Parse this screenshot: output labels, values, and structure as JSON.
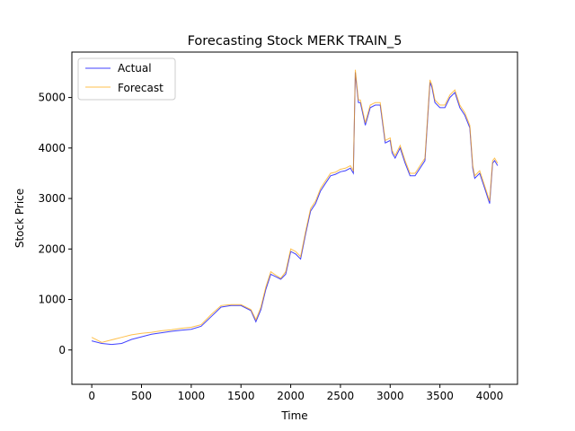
{
  "chart_data": {
    "type": "line",
    "title": "Forecasting Stock MERK TRAIN_5",
    "xlabel": "Time",
    "ylabel": "Stock Price",
    "xlim": [
      -200,
      4280
    ],
    "ylim": [
      -680,
      5900
    ],
    "xticks": [
      0,
      500,
      1000,
      1500,
      2000,
      2500,
      3000,
      3500,
      4000
    ],
    "yticks": [
      0,
      1000,
      2000,
      3000,
      4000,
      5000
    ],
    "grid": false,
    "legend_position": "top-left",
    "series": [
      {
        "name": "Actual",
        "color": "#0000ff",
        "x": [
          0,
          100,
          200,
          300,
          400,
          500,
          600,
          700,
          800,
          900,
          1000,
          1100,
          1200,
          1300,
          1400,
          1500,
          1600,
          1650,
          1700,
          1750,
          1800,
          1850,
          1900,
          1950,
          2000,
          2050,
          2100,
          2150,
          2200,
          2250,
          2300,
          2350,
          2400,
          2450,
          2500,
          2550,
          2600,
          2630,
          2650,
          2660,
          2680,
          2700,
          2750,
          2800,
          2850,
          2900,
          2950,
          3000,
          3020,
          3050,
          3100,
          3150,
          3200,
          3250,
          3300,
          3350,
          3400,
          3420,
          3450,
          3500,
          3550,
          3600,
          3650,
          3700,
          3750,
          3800,
          3830,
          3850,
          3900,
          3950,
          4000,
          4030,
          4050,
          4080
        ],
        "values": [
          180,
          130,
          110,
          130,
          210,
          260,
          310,
          340,
          370,
          390,
          410,
          470,
          660,
          850,
          880,
          880,
          780,
          560,
          800,
          1200,
          1500,
          1450,
          1400,
          1500,
          1950,
          1900,
          1800,
          2300,
          2750,
          2900,
          3150,
          3300,
          3450,
          3480,
          3530,
          3550,
          3600,
          3500,
          5500,
          5300,
          4900,
          4900,
          4450,
          4800,
          4850,
          4850,
          4100,
          4150,
          3900,
          3800,
          4000,
          3700,
          3450,
          3450,
          3600,
          3750,
          5300,
          5200,
          4900,
          4800,
          4800,
          5000,
          5100,
          4800,
          4650,
          4400,
          3600,
          3400,
          3500,
          3200,
          2900,
          3700,
          3750,
          3650
        ]
      },
      {
        "name": "Forecast",
        "color": "#ffa500",
        "x": [
          0,
          100,
          200,
          300,
          400,
          500,
          600,
          700,
          800,
          900,
          1000,
          1100,
          1200,
          1300,
          1400,
          1500,
          1600,
          1650,
          1700,
          1750,
          1800,
          1850,
          1900,
          1950,
          2000,
          2050,
          2100,
          2150,
          2200,
          2250,
          2300,
          2350,
          2400,
          2450,
          2500,
          2550,
          2600,
          2630,
          2650,
          2660,
          2680,
          2700,
          2750,
          2800,
          2850,
          2900,
          2950,
          3000,
          3020,
          3050,
          3100,
          3150,
          3200,
          3250,
          3300,
          3350,
          3400,
          3420,
          3450,
          3500,
          3550,
          3600,
          3650,
          3700,
          3750,
          3800,
          3830,
          3850,
          3900,
          3950,
          4000,
          4030,
          4050,
          4080
        ],
        "values": [
          250,
          150,
          200,
          250,
          300,
          330,
          350,
          380,
          400,
          430,
          450,
          500,
          700,
          880,
          900,
          900,
          800,
          600,
          850,
          1250,
          1550,
          1480,
          1420,
          1550,
          2000,
          1950,
          1850,
          2350,
          2800,
          2950,
          3200,
          3350,
          3500,
          3520,
          3580,
          3600,
          3650,
          3550,
          5550,
          5350,
          4950,
          4950,
          4500,
          4850,
          4900,
          4900,
          4150,
          4200,
          3950,
          3850,
          4050,
          3750,
          3500,
          3500,
          3650,
          3800,
          5350,
          5250,
          4950,
          4850,
          4850,
          5050,
          5150,
          4850,
          4700,
          4450,
          3650,
          3450,
          3550,
          3250,
          2950,
          3750,
          3800,
          3700
        ]
      }
    ]
  }
}
